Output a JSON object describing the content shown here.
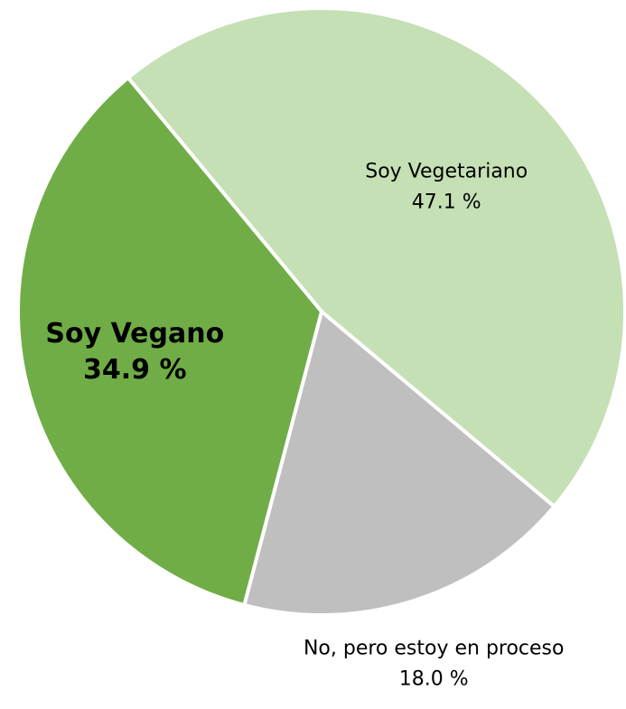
{
  "chart_data": {
    "type": "pie",
    "categories": [
      "Soy Vegetariano",
      "No, pero estoy en proceso",
      "Soy Vegano"
    ],
    "values": [
      47.1,
      18.0,
      34.9
    ],
    "value_labels": [
      "47.1 %",
      "18.0 %",
      "34.9 %"
    ],
    "colors": [
      "#c5e0b4",
      "#bfbfbf",
      "#70ad47"
    ]
  }
}
